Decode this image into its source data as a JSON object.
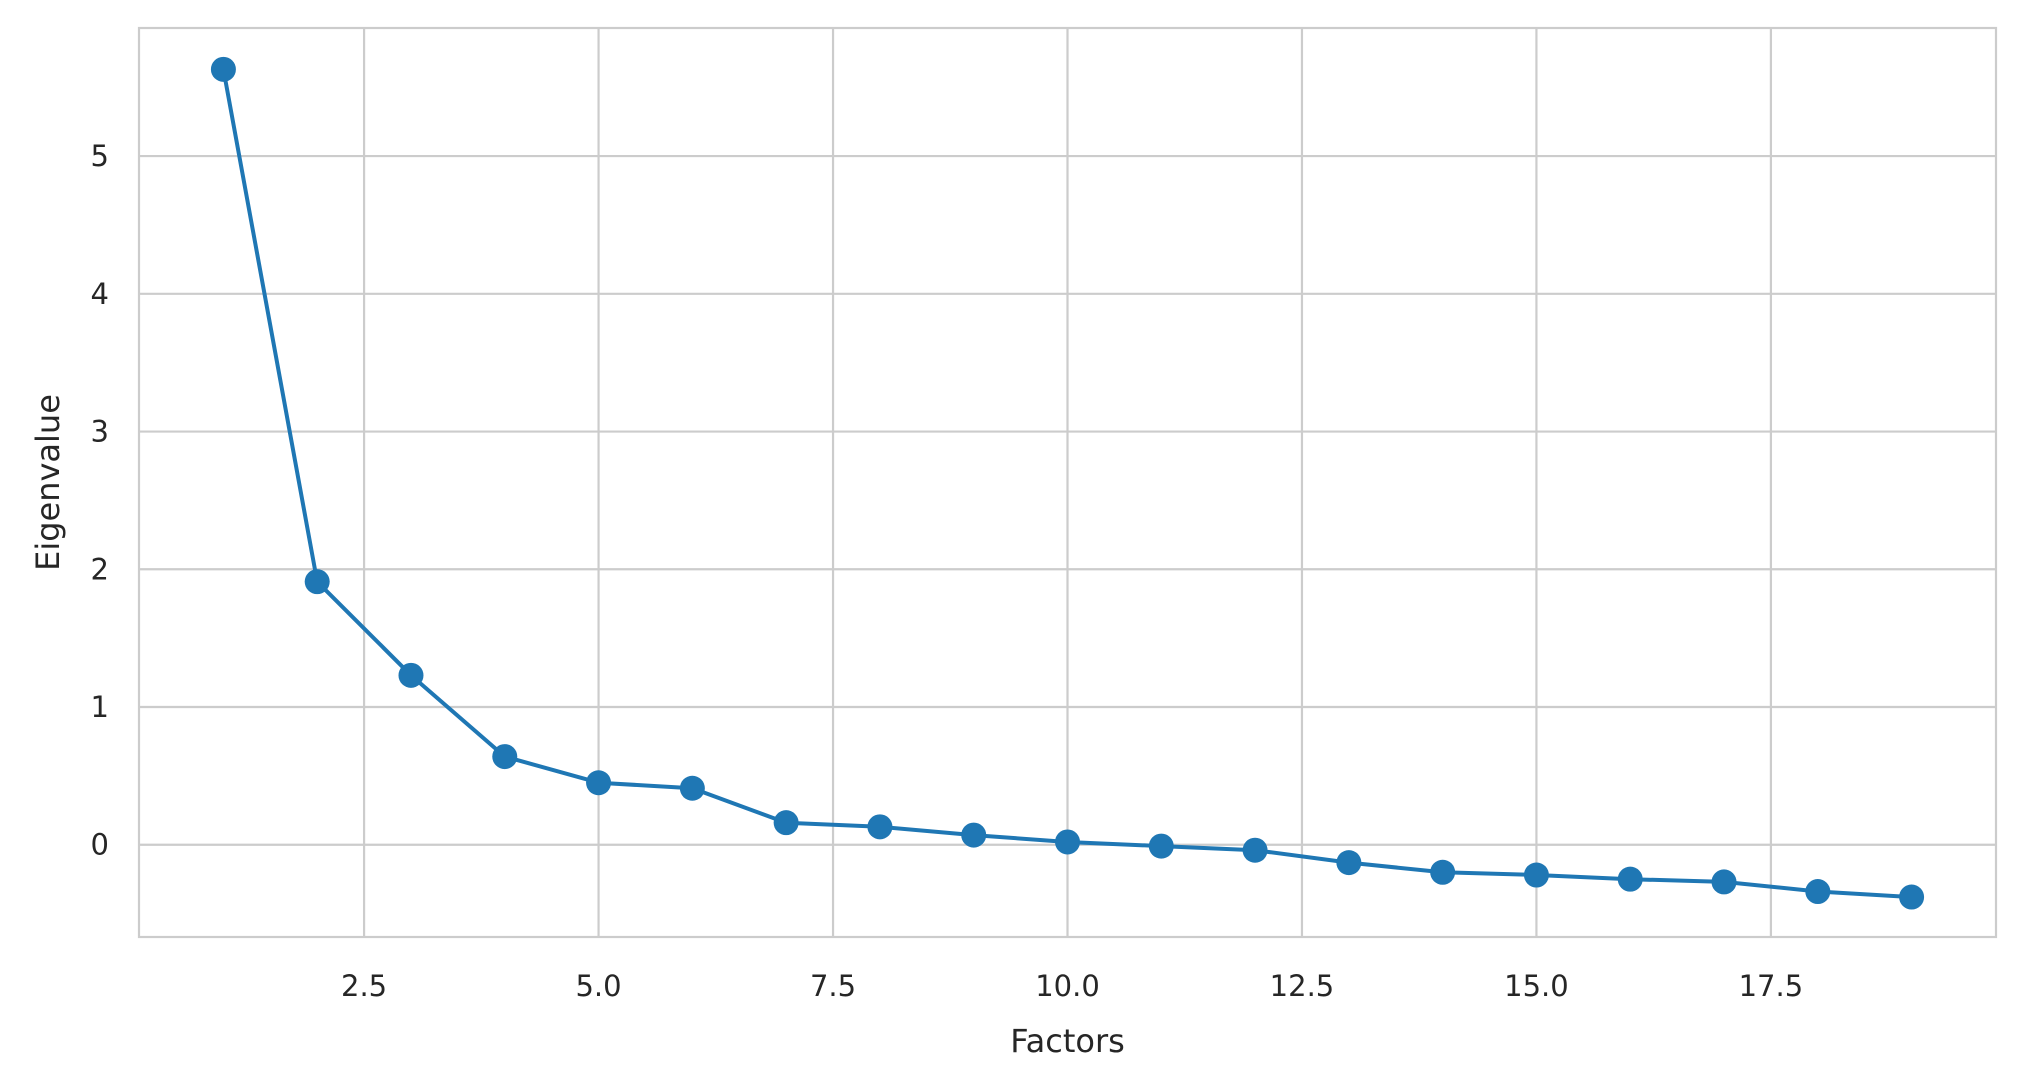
{
  "chart_data": {
    "type": "line",
    "title": "",
    "xlabel": "Factors",
    "ylabel": "Eigenvalue",
    "xlim": [
      0.1,
      19.9
    ],
    "ylim": [
      -0.67,
      5.93
    ],
    "xticks": [
      2.5,
      5.0,
      7.5,
      10.0,
      12.5,
      15.0,
      17.5
    ],
    "xtick_labels": [
      "2.5",
      "5.0",
      "7.5",
      "10.0",
      "12.5",
      "15.0",
      "17.5"
    ],
    "yticks": [
      0,
      1,
      2,
      3,
      4,
      5
    ],
    "ytick_labels": [
      "0",
      "1",
      "2",
      "3",
      "4",
      "5"
    ],
    "grid": true,
    "legend": "none",
    "color": "#1f77b4",
    "series": [
      {
        "marker": "circle",
        "x": [
          1,
          2,
          3,
          4,
          5,
          6,
          7,
          8,
          9,
          10,
          11,
          12,
          13,
          14,
          15,
          16,
          17,
          18,
          19
        ],
        "y": [
          5.63,
          1.91,
          1.23,
          0.64,
          0.45,
          0.41,
          0.16,
          0.13,
          0.07,
          0.02,
          -0.01,
          -0.04,
          -0.13,
          -0.2,
          -0.22,
          -0.25,
          -0.27,
          -0.34,
          -0.38
        ]
      }
    ]
  }
}
